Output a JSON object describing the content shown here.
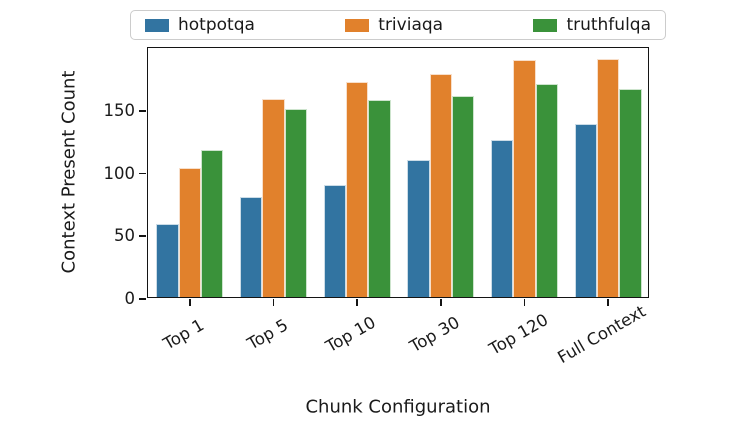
{
  "chart_data": {
    "type": "bar",
    "title": "",
    "xlabel": "Chunk Configuration",
    "ylabel": "Context Present Count",
    "categories": [
      "Top 1",
      "Top 5",
      "Top 10",
      "Top 30",
      "Top 120",
      "Full Context"
    ],
    "series": [
      {
        "name": "hotpotqa",
        "color": "#3274A1",
        "values": [
          58,
          80,
          89,
          109,
          125,
          138
        ]
      },
      {
        "name": "triviaqa",
        "color": "#E1812C",
        "values": [
          103,
          158,
          171,
          178,
          189,
          190
        ]
      },
      {
        "name": "truthfulqa",
        "color": "#3A923A",
        "values": [
          117,
          150,
          157,
          160,
          170,
          166
        ]
      }
    ],
    "ylim": [
      0,
      200
    ],
    "yticks": [
      0,
      50,
      100,
      150
    ],
    "xtick_rotation": 30,
    "grid": false,
    "legend_position": "top-center",
    "axis_color": "#141414",
    "text_color": "#1a1a1a"
  }
}
